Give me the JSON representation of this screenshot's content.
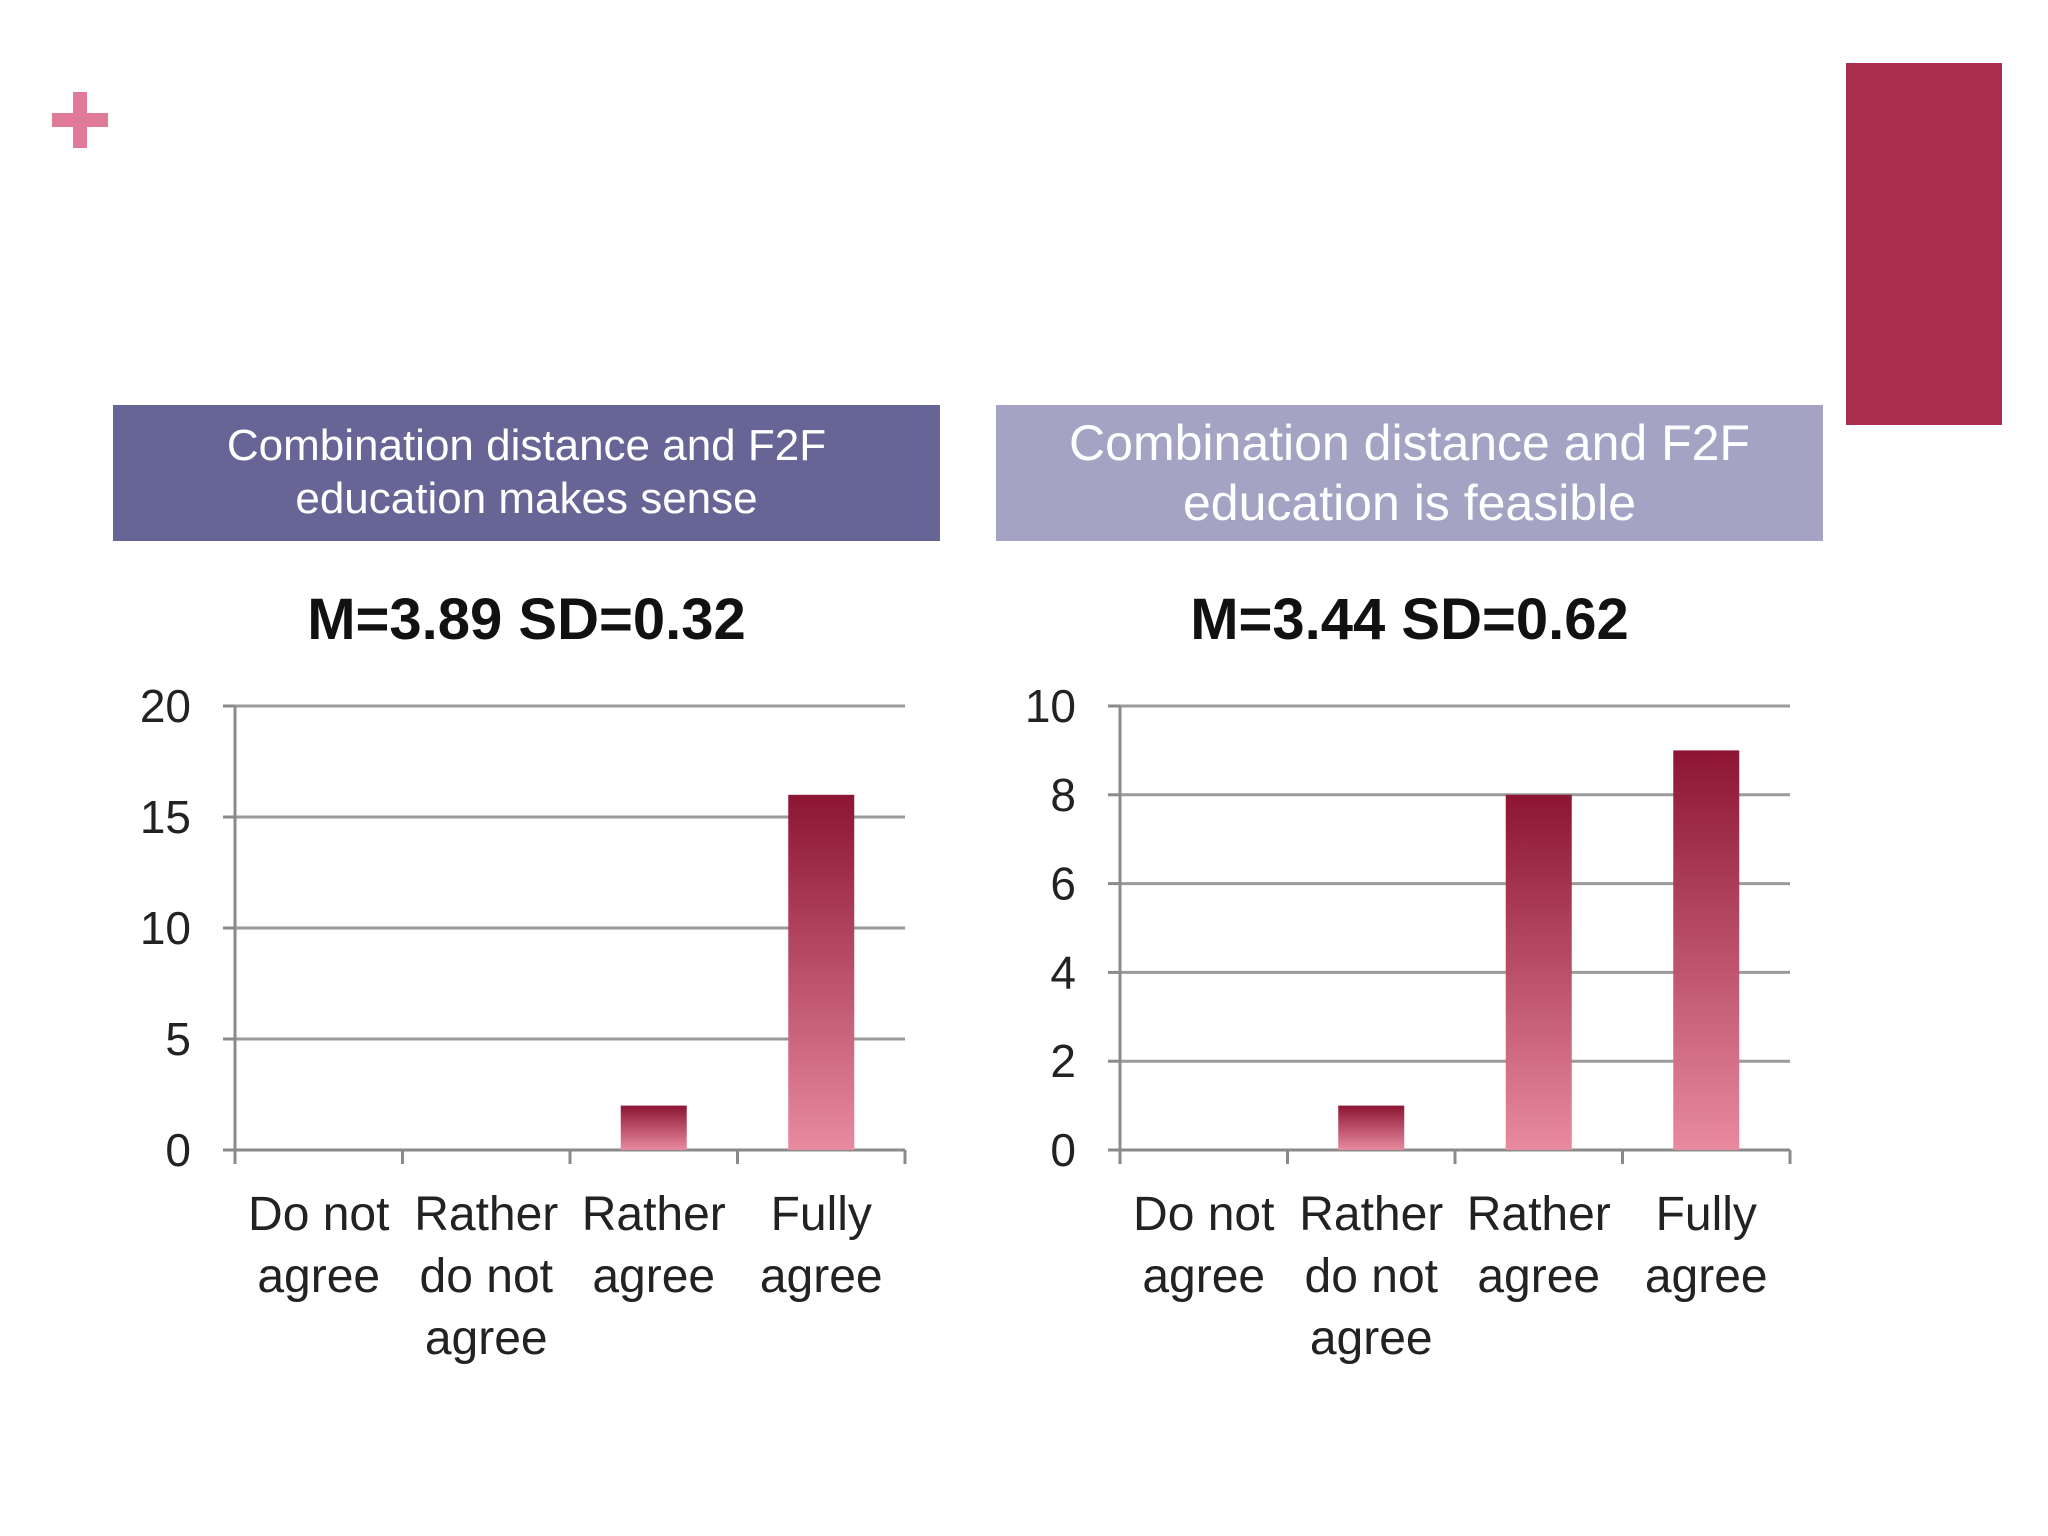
{
  "colors": {
    "accent": "#ad2f50",
    "plus": "#e07a98",
    "header_left_bg": "#676596",
    "header_right_bg": "#a5a3c4",
    "bar_top": "#8c1533",
    "bar_bottom": "#e88aa0",
    "grid": "#9a9a9a",
    "axis": "#8a8a8a"
  },
  "charts": [
    {
      "header_lines": [
        "Combination distance and F2F",
        "education makes sense"
      ],
      "stat": "M=3.89 SD=0.32"
    },
    {
      "header_lines": [
        "Combination distance and F2F",
        "education is feasible"
      ],
      "stat": "M=3.44 SD=0.62"
    }
  ],
  "chart_data": [
    {
      "type": "bar",
      "title": "M=3.89 SD=0.32",
      "categories": [
        [
          "Do not",
          "agree"
        ],
        [
          "Rather",
          "do not",
          "agree"
        ],
        [
          "Rather",
          "agree"
        ],
        [
          "Fully",
          "agree"
        ]
      ],
      "values": [
        0,
        0,
        2,
        16
      ],
      "ylim": [
        0,
        20
      ],
      "yticks": [
        0,
        5,
        10,
        15,
        20
      ],
      "grid": true,
      "legend": "none"
    },
    {
      "type": "bar",
      "title": "M=3.44 SD=0.62",
      "categories": [
        [
          "Do not",
          "agree"
        ],
        [
          "Rather",
          "do not",
          "agree"
        ],
        [
          "Rather",
          "agree"
        ],
        [
          "Fully",
          "agree"
        ]
      ],
      "values": [
        0,
        1,
        8,
        9
      ],
      "ylim": [
        0,
        10
      ],
      "yticks": [
        0,
        2,
        4,
        6,
        8,
        10
      ],
      "grid": true,
      "legend": "none"
    }
  ]
}
